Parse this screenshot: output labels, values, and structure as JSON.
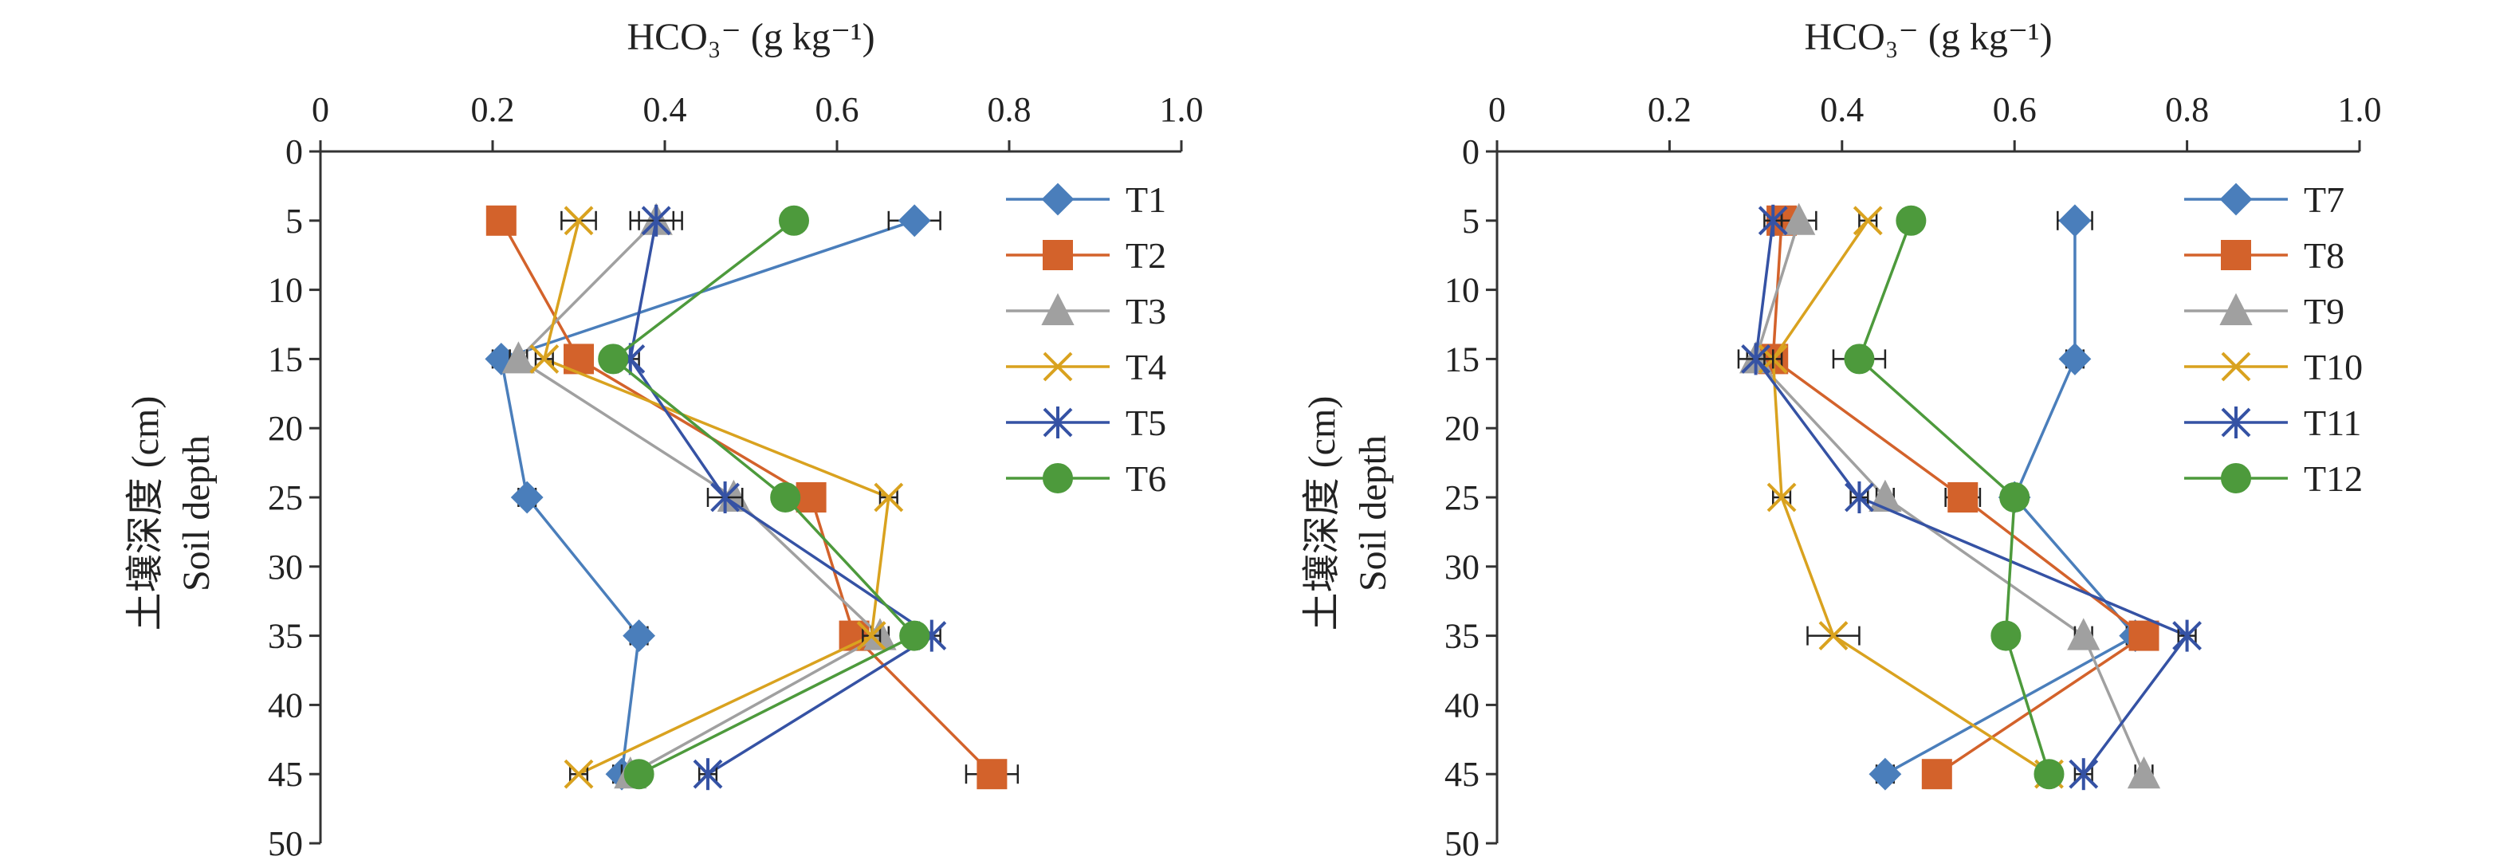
{
  "figure": {
    "y_axis_label_cn": "土壤深度 (cm)",
    "y_axis_label_en": "Soil depth"
  },
  "chart_data": [
    {
      "type": "line",
      "xlabel": "HCO₃⁻ (g kg⁻¹)",
      "ylabel": "土壤深度 (cm) Soil depth",
      "xlim": [
        0,
        1.0
      ],
      "ylim": [
        0,
        50
      ],
      "x_axis_position": "top",
      "y_reversed": true,
      "x_ticks": [
        "0",
        "0.2",
        "0.4",
        "0.6",
        "0.8",
        "1.0"
      ],
      "y_ticks": [
        "0",
        "5",
        "10",
        "15",
        "20",
        "25",
        "30",
        "35",
        "40",
        "45",
        "50"
      ],
      "grid": false,
      "legend_position": "right",
      "depths": [
        5,
        15,
        25,
        35,
        45
      ],
      "series": [
        {
          "name": "T1",
          "color": "#4a7ebb",
          "marker": "diamond",
          "values": [
            0.69,
            0.21,
            0.24,
            0.37,
            0.35
          ],
          "errors": [
            0.03,
            0.01,
            0.01,
            0.01,
            0.01
          ]
        },
        {
          "name": "T2",
          "color": "#d3622b",
          "marker": "square",
          "values": [
            0.21,
            0.3,
            0.57,
            0.62,
            0.78
          ],
          "errors": [
            0.0,
            0.01,
            0.01,
            0.01,
            0.03
          ]
        },
        {
          "name": "T3",
          "color": "#a0a0a0",
          "marker": "triangle",
          "values": [
            0.39,
            0.23,
            0.48,
            0.65,
            0.36
          ],
          "errors": [
            0.02,
            0.01,
            0.01,
            0.01,
            0.01
          ]
        },
        {
          "name": "T4",
          "color": "#d9a21f",
          "marker": "x",
          "values": [
            0.3,
            0.26,
            0.66,
            0.64,
            0.3
          ],
          "errors": [
            0.02,
            0.01,
            0.01,
            0.01,
            0.01
          ]
        },
        {
          "name": "T5",
          "color": "#3552a4",
          "marker": "star",
          "values": [
            0.39,
            0.36,
            0.47,
            0.71,
            0.45
          ],
          "errors": [
            0.03,
            0.01,
            0.02,
            0.01,
            0.01
          ]
        },
        {
          "name": "T6",
          "color": "#4d9a3c",
          "marker": "circle",
          "values": [
            0.55,
            0.34,
            0.54,
            0.69,
            0.37
          ],
          "errors": [
            0.0,
            0.0,
            0.0,
            0.0,
            0.0
          ]
        }
      ]
    },
    {
      "type": "line",
      "xlabel": "HCO₃⁻ (g kg⁻¹)",
      "ylabel": "土壤深度 (cm) Soil depth",
      "xlim": [
        0,
        1.0
      ],
      "ylim": [
        0,
        50
      ],
      "x_axis_position": "top",
      "y_reversed": true,
      "x_ticks": [
        "0",
        "0.2",
        "0.4",
        "0.6",
        "0.8",
        "1.0"
      ],
      "y_ticks": [
        "0",
        "5",
        "10",
        "15",
        "20",
        "25",
        "30",
        "35",
        "40",
        "45",
        "50"
      ],
      "grid": false,
      "legend_position": "right",
      "depths": [
        5,
        15,
        25,
        35,
        45
      ],
      "series": [
        {
          "name": "T7",
          "color": "#4a7ebb",
          "marker": "diamond",
          "values": [
            0.67,
            0.67,
            0.6,
            0.74,
            0.45
          ],
          "errors": [
            0.02,
            0.01,
            0.01,
            0.01,
            0.01
          ]
        },
        {
          "name": "T8",
          "color": "#d3622b",
          "marker": "square",
          "values": [
            0.33,
            0.32,
            0.54,
            0.75,
            0.51
          ],
          "errors": [
            0.0,
            0.0,
            0.02,
            0.01,
            0.0
          ]
        },
        {
          "name": "T9",
          "color": "#a0a0a0",
          "marker": "triangle",
          "values": [
            0.35,
            0.3,
            0.45,
            0.68,
            0.75
          ],
          "errors": [
            0.02,
            0.01,
            0.01,
            0.01,
            0.01
          ]
        },
        {
          "name": "T10",
          "color": "#d9a21f",
          "marker": "x",
          "values": [
            0.43,
            0.32,
            0.33,
            0.39,
            0.64
          ],
          "errors": [
            0.01,
            0.01,
            0.01,
            0.03,
            0.01
          ]
        },
        {
          "name": "T11",
          "color": "#3552a4",
          "marker": "star",
          "values": [
            0.32,
            0.3,
            0.42,
            0.8,
            0.68
          ],
          "errors": [
            0.01,
            0.02,
            0.01,
            0.01,
            0.01
          ]
        },
        {
          "name": "T12",
          "color": "#4d9a3c",
          "marker": "circle",
          "values": [
            0.48,
            0.42,
            0.6,
            0.59,
            0.64
          ],
          "errors": [
            0.0,
            0.03,
            0.01,
            0.01,
            0.01
          ]
        }
      ]
    }
  ]
}
